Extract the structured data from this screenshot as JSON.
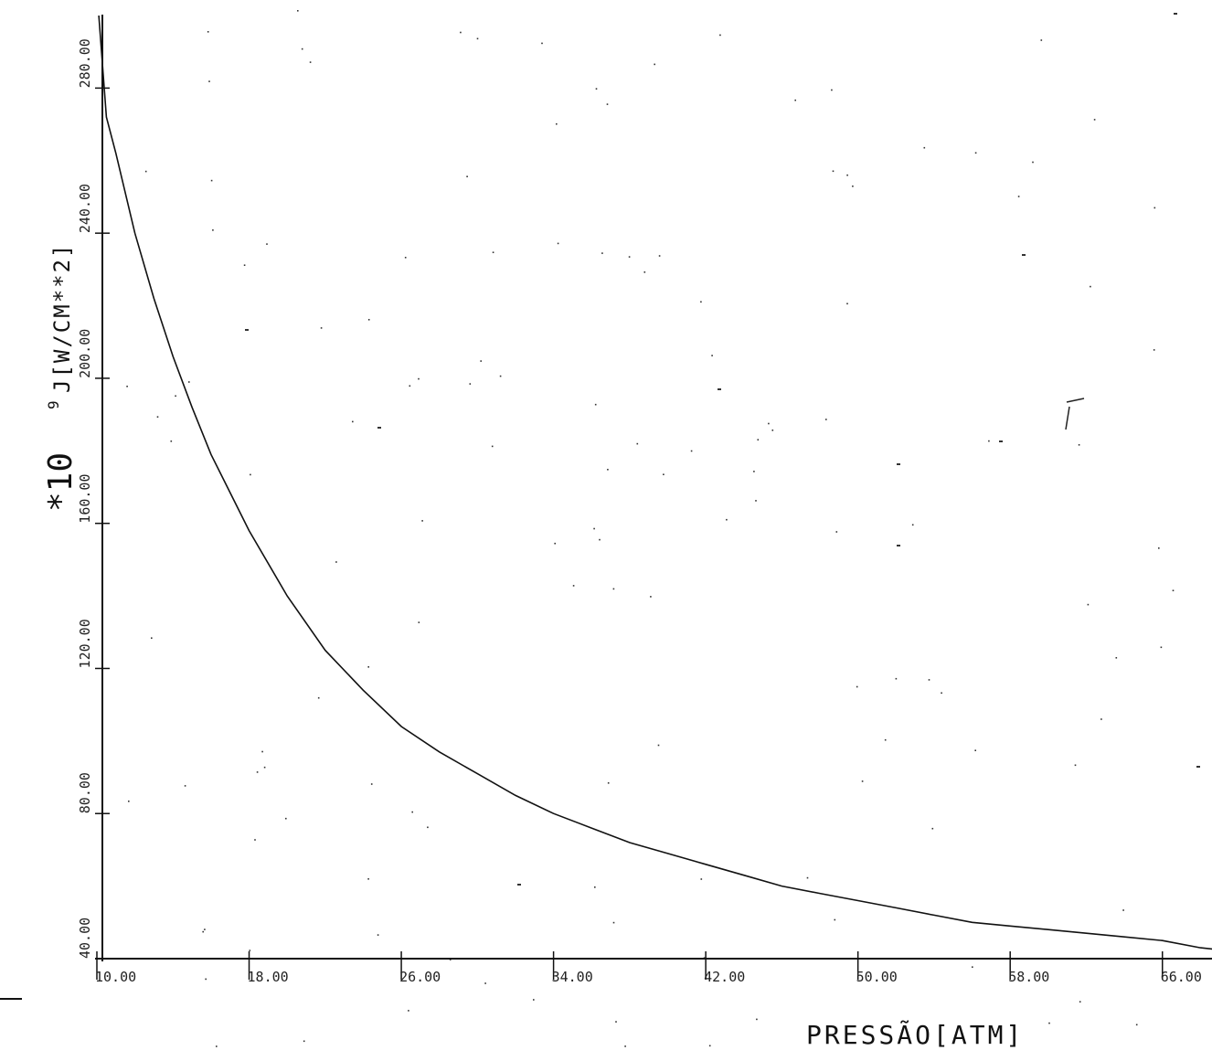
{
  "chart_data": {
    "type": "line",
    "xlabel": "PRESSÃO[ATM]",
    "ylabel_prefix": "*10",
    "ylabel_exponent": "9",
    "ylabel_suffix": "J[W/CM**2]",
    "xlim": [
      10,
      70
    ],
    "ylim": [
      40,
      300
    ],
    "x_ticks": [
      10,
      18,
      26,
      34,
      42,
      50,
      58,
      66
    ],
    "x_tick_labels": [
      "10.00",
      "18.00",
      "26.00",
      "34.00",
      "42.00",
      "50.00",
      "58.00",
      "66.00"
    ],
    "y_ticks": [
      40,
      80,
      120,
      160,
      200,
      240,
      280
    ],
    "y_tick_labels": [
      "40.00",
      "80.00",
      "120.00",
      "160.00",
      "200.00",
      "240.00",
      "280.00"
    ],
    "grid": false,
    "series": [
      {
        "x": [
          10.1,
          10.5,
          11,
          12,
          13,
          14,
          15,
          16,
          18,
          20,
          22,
          24,
          26,
          28,
          30,
          32,
          34,
          36,
          38,
          40,
          42,
          44,
          46,
          48,
          50,
          52,
          54,
          56,
          58,
          60,
          62,
          64,
          66,
          68,
          69.8
        ],
        "y": [
          300,
          272,
          262,
          240,
          222,
          206,
          192,
          179,
          158,
          140,
          125,
          114,
          104,
          97,
          91,
          85,
          80,
          76,
          72,
          69,
          66,
          63,
          60,
          58,
          56,
          54,
          52,
          50,
          49,
          48,
          47,
          46,
          45,
          43,
          42
        ]
      }
    ]
  }
}
